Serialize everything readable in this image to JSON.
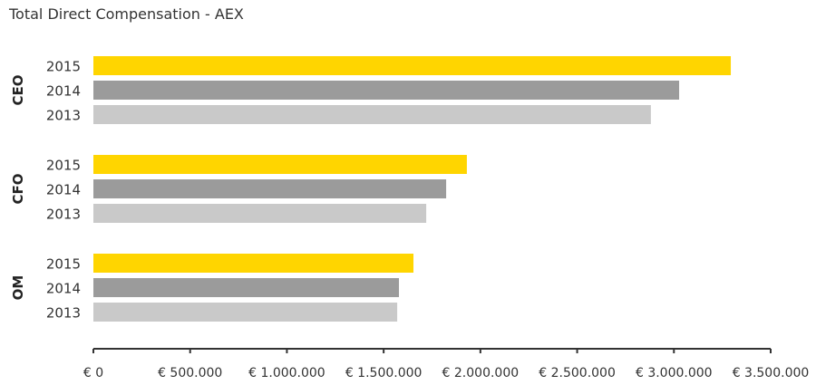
{
  "chart_data": {
    "type": "bar",
    "orientation": "horizontal",
    "title": "Total Direct Compensation - AEX",
    "groups": [
      {
        "name": "CEO",
        "bars": [
          {
            "label": "2015",
            "value": 3294000
          },
          {
            "label": "2014",
            "value": 3027000
          },
          {
            "label": "2013",
            "value": 2881000
          }
        ]
      },
      {
        "name": "CFO",
        "bars": [
          {
            "label": "2015",
            "value": 1930000
          },
          {
            "label": "2014",
            "value": 1823000
          },
          {
            "label": "2013",
            "value": 1720000
          }
        ]
      },
      {
        "name": "OM",
        "bars": [
          {
            "label": "2015",
            "value": 1654000
          },
          {
            "label": "2014",
            "value": 1579000
          },
          {
            "label": "2013",
            "value": 1570000
          }
        ]
      }
    ],
    "xlim": [
      0,
      3500000
    ],
    "xticks": [
      0,
      500000,
      1000000,
      1500000,
      2000000,
      2500000,
      3000000,
      3500000
    ],
    "xtick_labels": [
      "€ 0",
      "€ 500.000",
      "€ 1.000.000",
      "€ 1.500.000",
      "€ 2.000.000",
      "€ 2.500.000",
      "€ 3.000.000",
      "€ 3.500.000"
    ],
    "grid": false,
    "colors": {
      "2015": "#FFD500",
      "2014": "#9B9B9B",
      "2013": "#C9C9C9"
    }
  }
}
